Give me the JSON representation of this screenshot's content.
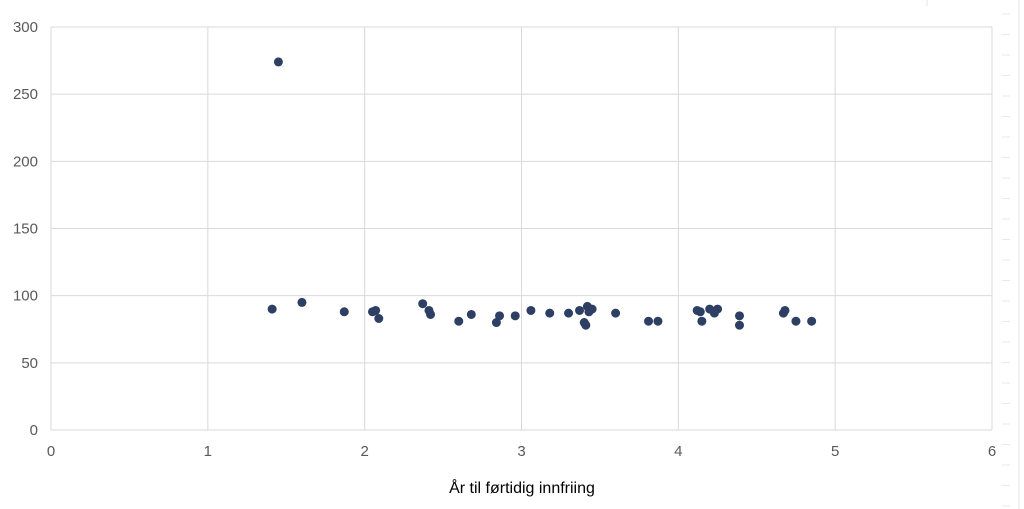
{
  "chart_data": {
    "type": "scatter",
    "title": "",
    "xlabel": "År til førtidig innfriing",
    "ylabel": "",
    "xlim": [
      0,
      6
    ],
    "ylim": [
      0,
      300
    ],
    "x_ticks": [
      0,
      1,
      2,
      3,
      4,
      5,
      6
    ],
    "y_ticks": [
      0,
      50,
      100,
      150,
      200,
      250,
      300
    ],
    "x_tick_labels": [
      "0",
      "1",
      "2",
      "3",
      "4",
      "5",
      "6"
    ],
    "y_tick_labels": [
      "0",
      "50",
      "100",
      "150",
      "200",
      "250",
      "300"
    ],
    "grid": true,
    "legend": false,
    "colors": {
      "marker": "#2e3f64",
      "grid": "#d9d9d9",
      "tick_text": "#595959",
      "title_text": "#000000"
    },
    "series": [
      {
        "points": [
          {
            "x": 1.41,
            "y": 90
          },
          {
            "x": 1.45,
            "y": 274
          },
          {
            "x": 1.6,
            "y": 95
          },
          {
            "x": 1.87,
            "y": 88
          },
          {
            "x": 2.05,
            "y": 88
          },
          {
            "x": 2.07,
            "y": 89
          },
          {
            "x": 2.09,
            "y": 83
          },
          {
            "x": 2.37,
            "y": 94
          },
          {
            "x": 2.41,
            "y": 89
          },
          {
            "x": 2.42,
            "y": 86
          },
          {
            "x": 2.6,
            "y": 81
          },
          {
            "x": 2.68,
            "y": 86
          },
          {
            "x": 2.84,
            "y": 80
          },
          {
            "x": 2.86,
            "y": 85
          },
          {
            "x": 2.96,
            "y": 85
          },
          {
            "x": 3.06,
            "y": 89
          },
          {
            "x": 3.18,
            "y": 87
          },
          {
            "x": 3.3,
            "y": 87
          },
          {
            "x": 3.37,
            "y": 89
          },
          {
            "x": 3.4,
            "y": 80
          },
          {
            "x": 3.41,
            "y": 78
          },
          {
            "x": 3.42,
            "y": 92
          },
          {
            "x": 3.43,
            "y": 88
          },
          {
            "x": 3.45,
            "y": 90
          },
          {
            "x": 3.6,
            "y": 87
          },
          {
            "x": 3.81,
            "y": 81
          },
          {
            "x": 3.87,
            "y": 81
          },
          {
            "x": 4.12,
            "y": 89
          },
          {
            "x": 4.14,
            "y": 88
          },
          {
            "x": 4.15,
            "y": 81
          },
          {
            "x": 4.2,
            "y": 90
          },
          {
            "x": 4.23,
            "y": 87
          },
          {
            "x": 4.25,
            "y": 90
          },
          {
            "x": 4.39,
            "y": 85
          },
          {
            "x": 4.39,
            "y": 78
          },
          {
            "x": 4.67,
            "y": 87
          },
          {
            "x": 4.68,
            "y": 89
          },
          {
            "x": 4.75,
            "y": 81
          },
          {
            "x": 4.85,
            "y": 81
          }
        ]
      }
    ]
  }
}
